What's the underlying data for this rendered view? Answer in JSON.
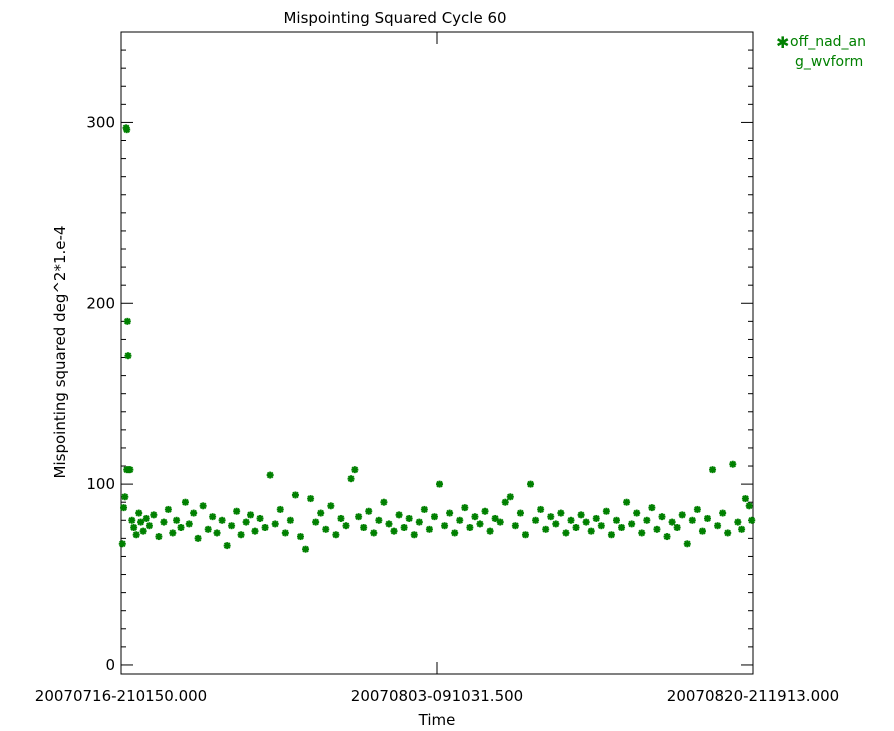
{
  "chart_data": {
    "type": "scatter",
    "title": "Mispointing Squared Cycle 60",
    "xlabel": "Time",
    "ylabel": "Mispointing squared deg^2*1.e-4",
    "x_tick_labels": [
      "20070716-210150.000",
      "20070803-091031.500",
      "20070820-211913.000"
    ],
    "x_range": [
      "20070716-210150.000",
      "20070820-211913.000"
    ],
    "ylim": [
      -5,
      350
    ],
    "y_ticks": [
      0,
      100,
      200,
      300
    ],
    "grid": false,
    "legend_position": "outside-top-right",
    "series": [
      {
        "name": "off_nad_ang_wvform",
        "legend_lines": [
          "off_nad_an",
          "g_wvform"
        ],
        "marker": "asterisk",
        "color": "#008000",
        "note_x": "x given as fraction of time span from first to last tick",
        "points": [
          [
            0.002,
            67
          ],
          [
            0.004,
            87
          ],
          [
            0.006,
            93
          ],
          [
            0.008,
            297
          ],
          [
            0.009,
            296
          ],
          [
            0.009,
            108
          ],
          [
            0.01,
            190
          ],
          [
            0.011,
            171
          ],
          [
            0.012,
            108
          ],
          [
            0.014,
            108
          ],
          [
            0.017,
            80
          ],
          [
            0.02,
            76
          ],
          [
            0.024,
            72
          ],
          [
            0.028,
            84
          ],
          [
            0.031,
            79
          ],
          [
            0.035,
            74
          ],
          [
            0.04,
            81
          ],
          [
            0.045,
            77
          ],
          [
            0.052,
            83
          ],
          [
            0.06,
            71
          ],
          [
            0.068,
            79
          ],
          [
            0.075,
            86
          ],
          [
            0.082,
            73
          ],
          [
            0.088,
            80
          ],
          [
            0.095,
            76
          ],
          [
            0.102,
            90
          ],
          [
            0.108,
            78
          ],
          [
            0.115,
            84
          ],
          [
            0.122,
            70
          ],
          [
            0.13,
            88
          ],
          [
            0.138,
            75
          ],
          [
            0.145,
            82
          ],
          [
            0.152,
            73
          ],
          [
            0.16,
            80
          ],
          [
            0.168,
            66
          ],
          [
            0.175,
            77
          ],
          [
            0.183,
            85
          ],
          [
            0.19,
            72
          ],
          [
            0.198,
            79
          ],
          [
            0.205,
            83
          ],
          [
            0.212,
            74
          ],
          [
            0.22,
            81
          ],
          [
            0.228,
            76
          ],
          [
            0.236,
            105
          ],
          [
            0.244,
            78
          ],
          [
            0.252,
            86
          ],
          [
            0.26,
            73
          ],
          [
            0.268,
            80
          ],
          [
            0.276,
            94
          ],
          [
            0.284,
            71
          ],
          [
            0.292,
            64
          ],
          [
            0.3,
            92
          ],
          [
            0.308,
            79
          ],
          [
            0.316,
            84
          ],
          [
            0.324,
            75
          ],
          [
            0.332,
            88
          ],
          [
            0.34,
            72
          ],
          [
            0.348,
            81
          ],
          [
            0.356,
            77
          ],
          [
            0.364,
            103
          ],
          [
            0.37,
            108
          ],
          [
            0.376,
            82
          ],
          [
            0.384,
            76
          ],
          [
            0.392,
            85
          ],
          [
            0.4,
            73
          ],
          [
            0.408,
            80
          ],
          [
            0.416,
            90
          ],
          [
            0.424,
            78
          ],
          [
            0.432,
            74
          ],
          [
            0.44,
            83
          ],
          [
            0.448,
            76
          ],
          [
            0.456,
            81
          ],
          [
            0.464,
            72
          ],
          [
            0.472,
            79
          ],
          [
            0.48,
            86
          ],
          [
            0.488,
            75
          ],
          [
            0.496,
            82
          ],
          [
            0.504,
            100
          ],
          [
            0.512,
            77
          ],
          [
            0.52,
            84
          ],
          [
            0.528,
            73
          ],
          [
            0.536,
            80
          ],
          [
            0.544,
            87
          ],
          [
            0.552,
            76
          ],
          [
            0.56,
            82
          ],
          [
            0.568,
            78
          ],
          [
            0.576,
            85
          ],
          [
            0.584,
            74
          ],
          [
            0.592,
            81
          ],
          [
            0.6,
            79
          ],
          [
            0.608,
            90
          ],
          [
            0.616,
            93
          ],
          [
            0.624,
            77
          ],
          [
            0.632,
            84
          ],
          [
            0.64,
            72
          ],
          [
            0.648,
            100
          ],
          [
            0.656,
            80
          ],
          [
            0.664,
            86
          ],
          [
            0.672,
            75
          ],
          [
            0.68,
            82
          ],
          [
            0.688,
            78
          ],
          [
            0.696,
            84
          ],
          [
            0.704,
            73
          ],
          [
            0.712,
            80
          ],
          [
            0.72,
            76
          ],
          [
            0.728,
            83
          ],
          [
            0.736,
            79
          ],
          [
            0.744,
            74
          ],
          [
            0.752,
            81
          ],
          [
            0.76,
            77
          ],
          [
            0.768,
            85
          ],
          [
            0.776,
            72
          ],
          [
            0.784,
            80
          ],
          [
            0.792,
            76
          ],
          [
            0.8,
            90
          ],
          [
            0.808,
            78
          ],
          [
            0.816,
            84
          ],
          [
            0.824,
            73
          ],
          [
            0.832,
            80
          ],
          [
            0.84,
            87
          ],
          [
            0.848,
            75
          ],
          [
            0.856,
            82
          ],
          [
            0.864,
            71
          ],
          [
            0.872,
            79
          ],
          [
            0.88,
            76
          ],
          [
            0.888,
            83
          ],
          [
            0.896,
            67
          ],
          [
            0.904,
            80
          ],
          [
            0.912,
            86
          ],
          [
            0.92,
            74
          ],
          [
            0.928,
            81
          ],
          [
            0.936,
            108
          ],
          [
            0.944,
            77
          ],
          [
            0.952,
            84
          ],
          [
            0.96,
            73
          ],
          [
            0.968,
            111
          ],
          [
            0.976,
            79
          ],
          [
            0.982,
            75
          ],
          [
            0.988,
            92
          ],
          [
            0.994,
            88
          ],
          [
            0.998,
            80
          ]
        ]
      }
    ]
  }
}
